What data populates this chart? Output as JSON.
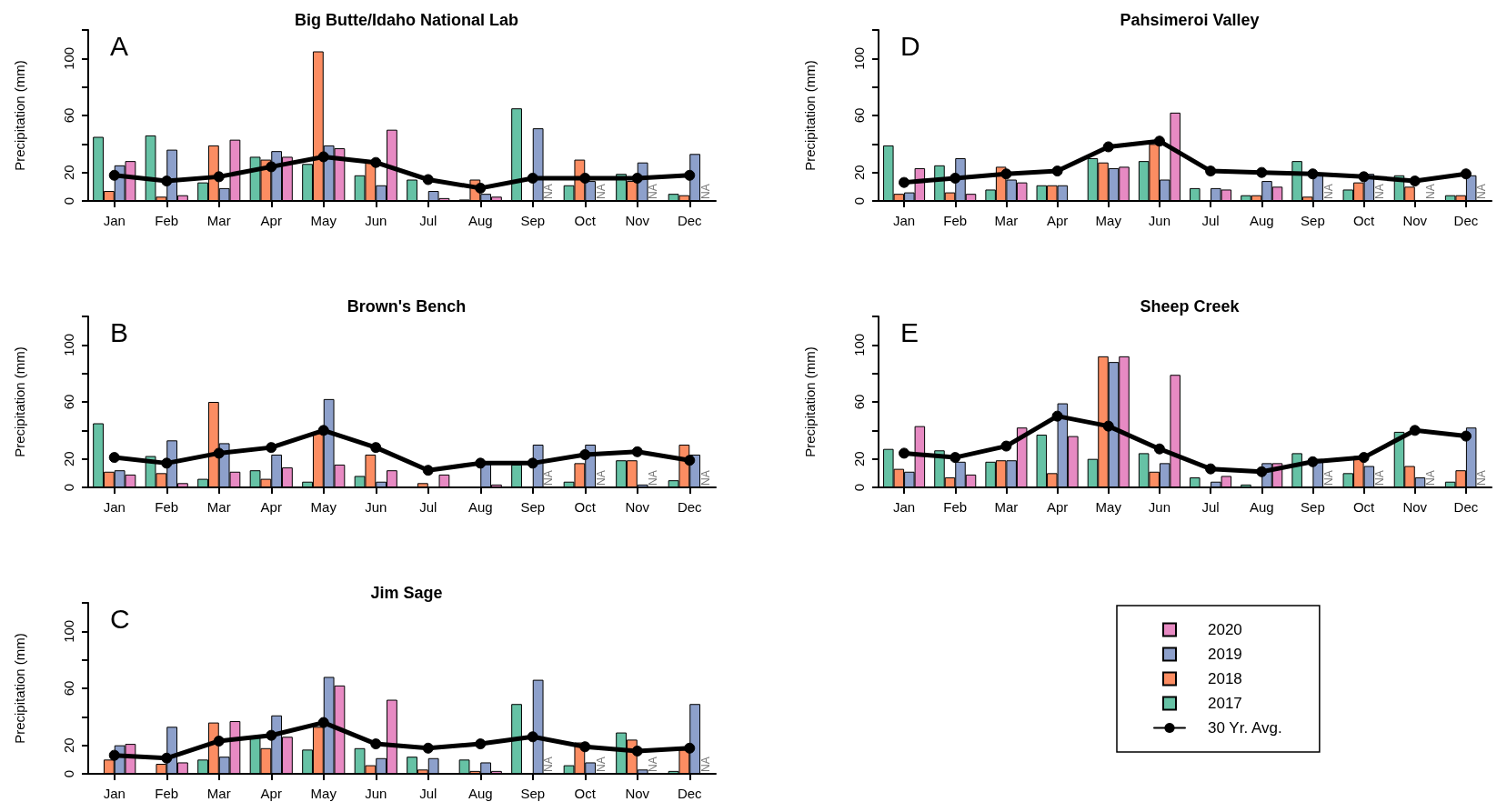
{
  "chart_data": [
    {
      "type": "bar",
      "title": "Big Butte/Idaho National Lab",
      "ylabel": "Precipitation (mm)",
      "categories": [
        "Jan",
        "Feb",
        "Mar",
        "Apr",
        "May",
        "Jun",
        "Jul",
        "Aug",
        "Sep",
        "Oct",
        "Nov",
        "Dec"
      ],
      "ylim": [
        0,
        120
      ],
      "yticks": [
        0,
        20,
        {
          "value": 40,
          "label": null
        },
        60,
        {
          "value": 80,
          "label": null
        },
        100,
        {
          "value": 120,
          "label": null
        }
      ],
      "annotations": [
        "A",
        {
          "text": "NA",
          "x": "Sep",
          "y": 0
        },
        {
          "text": "NA",
          "x": "Oct",
          "y": 0
        },
        {
          "text": "NA",
          "x": "Nov",
          "y": 0
        },
        {
          "text": "NA",
          "x": "Dec",
          "y": 0
        }
      ],
      "series": [
        {
          "color": "#66c2a5",
          "values": [
            45,
            46,
            13,
            31,
            26,
            18,
            15,
            1,
            65,
            11,
            19,
            5
          ]
        },
        {
          "color": "#fc8d62",
          "values": [
            7,
            3,
            39,
            29,
            105,
            27,
            0,
            15,
            0,
            29,
            14,
            4
          ]
        },
        {
          "color": "#8da0cb",
          "values": [
            25,
            36,
            9,
            35,
            39,
            11,
            7,
            5,
            51,
            14,
            27,
            33
          ]
        },
        {
          "color": "#e78ac3",
          "values": [
            28,
            4,
            43,
            31,
            37,
            50,
            2,
            3,
            null,
            null,
            null,
            null
          ]
        },
        {
          "type": "line",
          "color": "#000000",
          "marker": "circle",
          "line_style": "solid",
          "values": [
            18,
            14,
            17,
            24,
            31,
            27,
            15,
            9,
            16,
            16,
            16,
            18
          ]
        }
      ]
    },
    {
      "type": "bar",
      "title": "Brown's Bench",
      "ylabel": "Precipitation (mm)",
      "categories": [
        "Jan",
        "Feb",
        "Mar",
        "Apr",
        "May",
        "Jun",
        "Jul",
        "Aug",
        "Sep",
        "Oct",
        "Nov",
        "Dec"
      ],
      "ylim": [
        0,
        120
      ],
      "yticks": [
        0,
        20,
        {
          "value": 40,
          "label": null
        },
        60,
        {
          "value": 80,
          "label": null
        },
        100,
        {
          "value": 120,
          "label": null
        }
      ],
      "annotations": [
        "B",
        {
          "text": "NA",
          "x": "Sep",
          "y": 0
        },
        {
          "text": "NA",
          "x": "Oct",
          "y": 0
        },
        {
          "text": "NA",
          "x": "Nov",
          "y": 0
        },
        {
          "text": "NA",
          "x": "Dec",
          "y": 0
        }
      ],
      "series": [
        {
          "color": "#66c2a5",
          "values": [
            45,
            22,
            6,
            12,
            4,
            8,
            0,
            0,
            16,
            4,
            19,
            5
          ]
        },
        {
          "color": "#fc8d62",
          "values": [
            11,
            10,
            60,
            6,
            38,
            23,
            3,
            0,
            0,
            17,
            19,
            30
          ]
        },
        {
          "color": "#8da0cb",
          "values": [
            12,
            33,
            31,
            23,
            62,
            4,
            null,
            17,
            30,
            30,
            2,
            23
          ]
        },
        {
          "color": "#e78ac3",
          "values": [
            9,
            3,
            11,
            14,
            16,
            12,
            9,
            2,
            null,
            null,
            null,
            null
          ]
        },
        {
          "type": "line",
          "color": "#000000",
          "marker": "circle",
          "line_style": "solid",
          "values": [
            21,
            17,
            24,
            28,
            40,
            28,
            12,
            17,
            17,
            23,
            25,
            19
          ]
        }
      ]
    },
    {
      "type": "bar",
      "title": "Jim Sage",
      "ylabel": "Precipitation (mm)",
      "categories": [
        "Jan",
        "Feb",
        "Mar",
        "Apr",
        "May",
        "Jun",
        "Jul",
        "Aug",
        "Sep",
        "Oct",
        "Nov",
        "Dec"
      ],
      "ylim": [
        0,
        120
      ],
      "yticks": [
        0,
        20,
        {
          "value": 40,
          "label": null
        },
        60,
        {
          "value": 80,
          "label": null
        },
        100,
        {
          "value": 120,
          "label": null
        }
      ],
      "legend": "right",
      "annotations": [
        "C",
        {
          "text": "NA",
          "x": "Sep",
          "y": 0
        },
        {
          "text": "NA",
          "x": "Oct",
          "y": 0
        },
        {
          "text": "NA",
          "x": "Nov",
          "y": 0
        },
        {
          "text": "NA",
          "x": "Dec",
          "y": 0
        }
      ],
      "series": [
        {
          "name": "2017",
          "color": "#66c2a5",
          "values": [
            0,
            0,
            10,
            26,
            17,
            18,
            12,
            10,
            49,
            6,
            29,
            2
          ]
        },
        {
          "name": "2018",
          "color": "#fc8d62",
          "values": [
            10,
            7,
            36,
            18,
            33,
            6,
            3,
            2,
            0,
            22,
            24,
            17
          ]
        },
        {
          "name": "2019",
          "color": "#8da0cb",
          "values": [
            20,
            33,
            12,
            41,
            68,
            11,
            11,
            8,
            66,
            8,
            3,
            49
          ]
        },
        {
          "name": "2020",
          "color": "#e78ac3",
          "values": [
            21,
            8,
            37,
            26,
            62,
            52,
            0,
            2,
            null,
            null,
            null,
            null
          ]
        },
        {
          "name": "30 Yr. Avg.",
          "type": "line",
          "color": "#000000",
          "marker": "circle",
          "line_style": "solid",
          "values": [
            13,
            11,
            23,
            27,
            36,
            21,
            18,
            21,
            26,
            19,
            16,
            18
          ]
        }
      ]
    },
    {
      "type": "bar",
      "title": "Pahsimeroi Valley",
      "ylabel": "Precipitation (mm)",
      "categories": [
        "Jan",
        "Feb",
        "Mar",
        "Apr",
        "May",
        "Jun",
        "Jul",
        "Aug",
        "Sep",
        "Oct",
        "Nov",
        "Dec"
      ],
      "ylim": [
        0,
        120
      ],
      "yticks": [
        0,
        20,
        {
          "value": 40,
          "label": null
        },
        60,
        {
          "value": 80,
          "label": null
        },
        100,
        {
          "value": 120,
          "label": null
        }
      ],
      "annotations": [
        "D",
        {
          "text": "NA",
          "x": "Sep",
          "y": 0
        },
        {
          "text": "NA",
          "x": "Oct",
          "y": 0
        },
        {
          "text": "NA",
          "x": "Nov",
          "y": 0
        },
        {
          "text": "NA",
          "x": "Dec",
          "y": 0
        }
      ],
      "series": [
        {
          "color": "#66c2a5",
          "values": [
            39,
            25,
            8,
            11,
            30,
            28,
            9,
            4,
            28,
            8,
            18,
            4
          ]
        },
        {
          "color": "#fc8d62",
          "values": [
            5,
            6,
            24,
            11,
            27,
            40,
            0,
            4,
            3,
            13,
            10,
            4
          ]
        },
        {
          "color": "#8da0cb",
          "values": [
            6,
            30,
            15,
            11,
            23,
            15,
            9,
            14,
            18,
            19,
            null,
            18
          ]
        },
        {
          "color": "#e78ac3",
          "values": [
            23,
            5,
            13,
            0,
            24,
            62,
            8,
            10,
            null,
            null,
            null,
            null
          ]
        },
        {
          "type": "line",
          "color": "#000000",
          "marker": "circle",
          "line_style": "solid",
          "values": [
            13,
            16,
            19,
            21,
            38,
            42,
            21,
            20,
            19,
            17,
            14,
            19
          ]
        }
      ]
    },
    {
      "type": "bar",
      "title": "Sheep Creek",
      "ylabel": "Precipitation (mm)",
      "categories": [
        "Jan",
        "Feb",
        "Mar",
        "Apr",
        "May",
        "Jun",
        "Jul",
        "Aug",
        "Sep",
        "Oct",
        "Nov",
        "Dec"
      ],
      "ylim": [
        0,
        120
      ],
      "yticks": [
        0,
        20,
        {
          "value": 40,
          "label": null
        },
        60,
        {
          "value": 80,
          "label": null
        },
        100,
        {
          "value": 120,
          "label": null
        }
      ],
      "annotations": [
        "E",
        {
          "text": "NA",
          "x": "Sep",
          "y": 0
        },
        {
          "text": "NA",
          "x": "Oct",
          "y": 0
        },
        {
          "text": "NA",
          "x": "Nov",
          "y": 0
        },
        {
          "text": "NA",
          "x": "Dec",
          "y": 0
        }
      ],
      "series": [
        {
          "color": "#66c2a5",
          "values": [
            27,
            26,
            18,
            37,
            20,
            24,
            7,
            2,
            24,
            10,
            39,
            4
          ]
        },
        {
          "color": "#fc8d62",
          "values": [
            13,
            7,
            19,
            10,
            92,
            11,
            0,
            0,
            0,
            22,
            15,
            12
          ]
        },
        {
          "color": "#8da0cb",
          "values": [
            11,
            18,
            19,
            59,
            88,
            17,
            4,
            17,
            20,
            15,
            7,
            42
          ]
        },
        {
          "color": "#e78ac3",
          "values": [
            43,
            9,
            42,
            36,
            92,
            79,
            8,
            17,
            null,
            null,
            null,
            null
          ]
        },
        {
          "type": "line",
          "color": "#000000",
          "marker": "circle",
          "line_style": "solid",
          "values": [
            24,
            21,
            29,
            50,
            43,
            27,
            13,
            11,
            18,
            21,
            40,
            36
          ]
        }
      ]
    }
  ]
}
